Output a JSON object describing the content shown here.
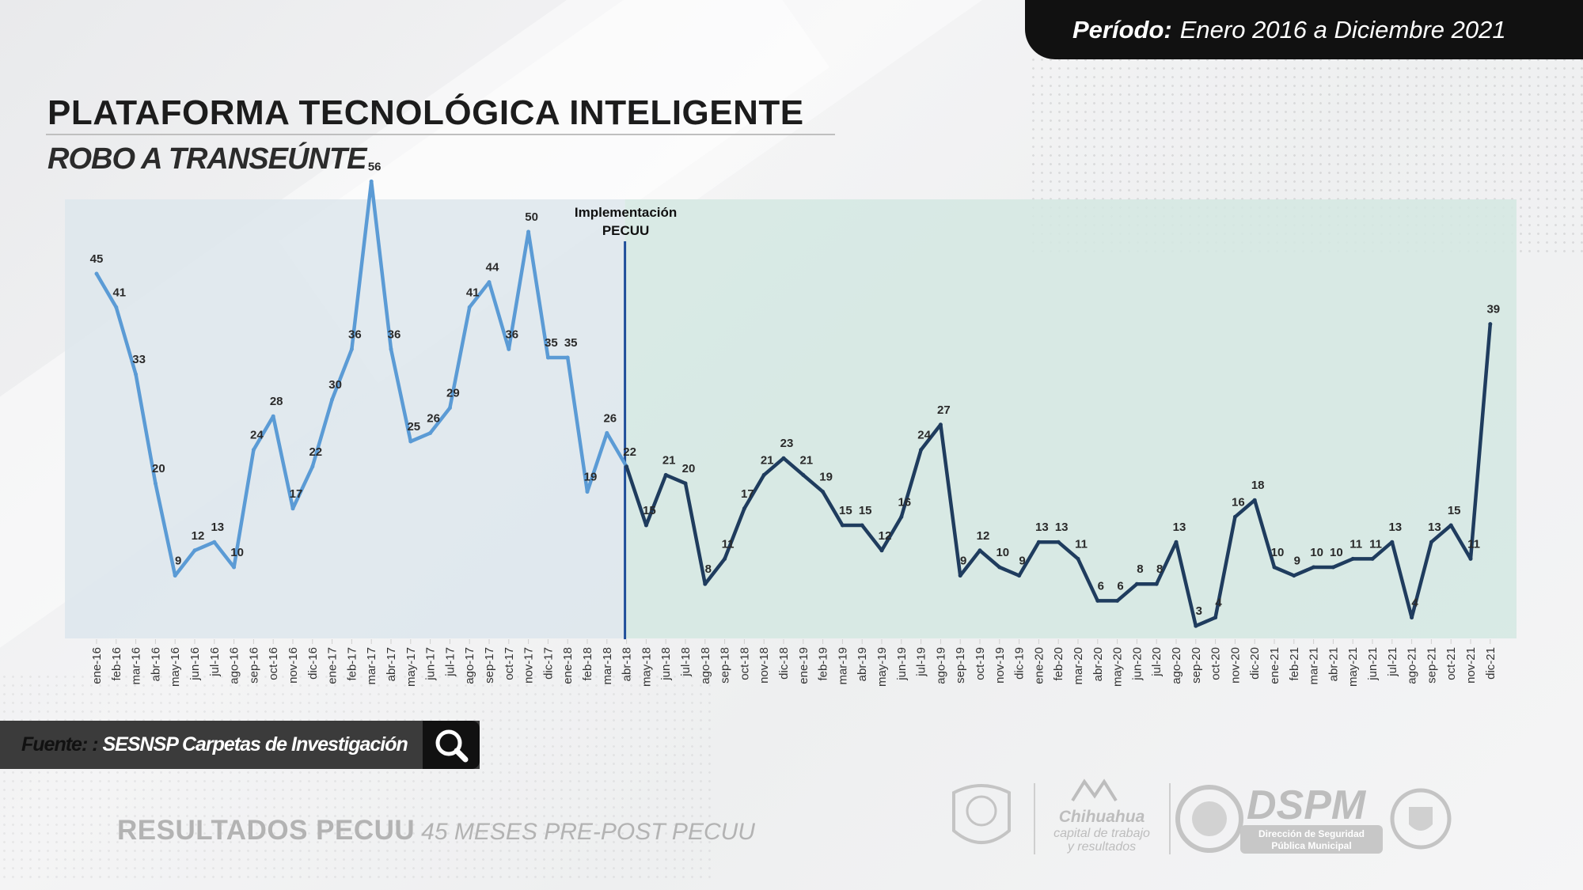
{
  "header": {
    "period_label": "Período:",
    "period_value": "Enero 2016 a Diciembre 2021",
    "title": "PLATAFORMA TECNOLÓGICA INTELIGENTE",
    "subtitle": "ROBO A TRANSEÚNTE"
  },
  "source": {
    "label": "Fuente: :",
    "value": "SESNSP Carpetas de Investigación",
    "icon": "search-icon"
  },
  "footer": {
    "results_bold": "RESULTADOS PECUU",
    "results_italic": "45 MESES PRE-POST PECUU"
  },
  "logos": {
    "chihuahua_line1": "Chihuahua",
    "chihuahua_line2": "capital de trabajo",
    "chihuahua_line3": "y resultados",
    "dspm": "DSPM",
    "dspm_sub1": "Dirección de Seguridad",
    "dspm_sub2": "Pública Municipal"
  },
  "colors": {
    "pre_line": "#5b9bd5",
    "post_line": "#1f3c5e",
    "divider": "#1f4e9a",
    "pre_bg": "#dde6ec",
    "post_bg": "#d3e7e2"
  },
  "chart_data": {
    "type": "line",
    "annotation": "Implementación PECUU",
    "annotation_lines": [
      "Implementación",
      "PECUU"
    ],
    "implementation_index": 27,
    "categories": [
      "ene-16",
      "feb-16",
      "mar-16",
      "abr-16",
      "may-16",
      "jun-16",
      "jul-16",
      "ago-16",
      "sep-16",
      "oct-16",
      "nov-16",
      "dic-16",
      "ene-17",
      "feb-17",
      "mar-17",
      "abr-17",
      "may-17",
      "jun-17",
      "jul-17",
      "ago-17",
      "sep-17",
      "oct-17",
      "nov-17",
      "dic-17",
      "ene-18",
      "feb-18",
      "mar-18",
      "abr-18",
      "may-18",
      "jun-18",
      "jul-18",
      "ago-18",
      "sep-18",
      "oct-18",
      "nov-18",
      "dic-18",
      "ene-19",
      "feb-19",
      "mar-19",
      "abr-19",
      "may-19",
      "jun-19",
      "jul-19",
      "ago-19",
      "sep-19",
      "oct-19",
      "nov-19",
      "dic-19",
      "ene-20",
      "feb-20",
      "mar-20",
      "abr-20",
      "may-20",
      "jun-20",
      "jul-20",
      "ago-20",
      "sep-20",
      "oct-20",
      "nov-20",
      "dic-20",
      "ene-21",
      "feb-21",
      "mar-21",
      "abr-21",
      "may-21",
      "jun-21",
      "jul-21",
      "ago-21",
      "sep-21",
      "oct-21",
      "nov-21",
      "dic-21"
    ],
    "values": [
      45,
      41,
      33,
      20,
      9,
      12,
      13,
      10,
      24,
      28,
      17,
      22,
      30,
      36,
      56,
      36,
      25,
      26,
      29,
      41,
      44,
      36,
      50,
      35,
      35,
      19,
      26,
      22,
      15,
      21,
      20,
      8,
      11,
      17,
      21,
      23,
      21,
      19,
      15,
      15,
      12,
      16,
      24,
      27,
      9,
      12,
      10,
      9,
      13,
      13,
      11,
      6,
      6,
      8,
      8,
      13,
      3,
      4,
      16,
      18,
      10,
      9,
      10,
      10,
      11,
      11,
      13,
      4,
      13,
      15,
      11,
      39
    ],
    "ylim": [
      0,
      58
    ]
  }
}
